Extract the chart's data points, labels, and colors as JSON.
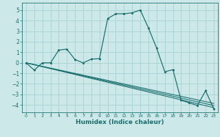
{
  "xlabel": "Humidex (Indice chaleur)",
  "bg_color": "#cce8e8",
  "grid_color": "#aad4d4",
  "line_color": "#1a6e6e",
  "xlim": [
    -0.5,
    23.5
  ],
  "ylim": [
    -4.7,
    5.7
  ],
  "xticks": [
    0,
    1,
    2,
    3,
    4,
    5,
    6,
    7,
    8,
    9,
    10,
    11,
    12,
    13,
    14,
    15,
    16,
    17,
    18,
    19,
    20,
    21,
    22,
    23
  ],
  "yticks": [
    -4,
    -3,
    -2,
    -1,
    0,
    1,
    2,
    3,
    4,
    5
  ],
  "series1_x": [
    0,
    1,
    2,
    3,
    4,
    5,
    6,
    7,
    8,
    9,
    10,
    11,
    12,
    13,
    14,
    15,
    16,
    17,
    18,
    19,
    20,
    21,
    22,
    23
  ],
  "series1_y": [
    0,
    -0.7,
    0,
    0,
    1.2,
    1.3,
    0.3,
    0.0,
    0.35,
    0.4,
    4.2,
    4.65,
    4.65,
    4.75,
    5.0,
    3.3,
    1.4,
    -0.85,
    -0.65,
    -3.55,
    -3.8,
    -4.05,
    -2.65,
    -4.35
  ],
  "series2_x": [
    0,
    23
  ],
  "series2_y": [
    0,
    -3.85
  ],
  "series3_x": [
    0,
    23
  ],
  "series3_y": [
    0,
    -4.05
  ],
  "series4_x": [
    0,
    23
  ],
  "series4_y": [
    0,
    -4.25
  ]
}
